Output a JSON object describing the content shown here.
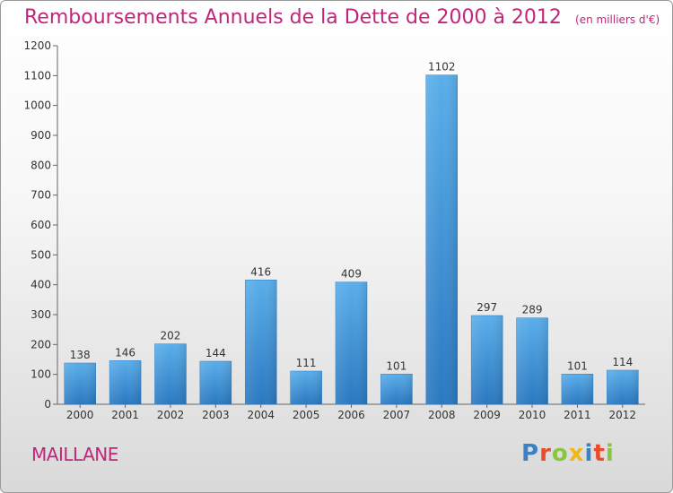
{
  "chart_data": {
    "type": "bar",
    "title": "Remboursements Annuels de la Dette de 2000 à 2012",
    "subtitle": "(en milliers d'€)",
    "categories": [
      "2000",
      "2001",
      "2002",
      "2003",
      "2004",
      "2005",
      "2006",
      "2007",
      "2008",
      "2009",
      "2010",
      "2011",
      "2012"
    ],
    "values": [
      138,
      146,
      202,
      144,
      416,
      111,
      409,
      101,
      1102,
      297,
      289,
      101,
      114
    ],
    "ylim": [
      0,
      1200
    ],
    "yticks": [
      0,
      100,
      200,
      300,
      400,
      500,
      600,
      700,
      800,
      900,
      1000,
      1100,
      1200
    ],
    "grid": false,
    "legend": "none",
    "bar_color": "#3a8fd8",
    "accent_color": "#c0267a"
  },
  "commune": "MAILLANE",
  "logo": {
    "text": "Proxiti",
    "letters": [
      {
        "ch": "P",
        "color": "#3b82c4"
      },
      {
        "ch": "r",
        "color": "#e84c2b"
      },
      {
        "ch": "o",
        "color": "#8bc53f"
      },
      {
        "ch": "x",
        "color": "#f2b617"
      },
      {
        "ch": "i",
        "color": "#3b82c4"
      },
      {
        "ch": "t",
        "color": "#e84c2b"
      },
      {
        "ch": "i",
        "color": "#8bc53f"
      }
    ]
  }
}
